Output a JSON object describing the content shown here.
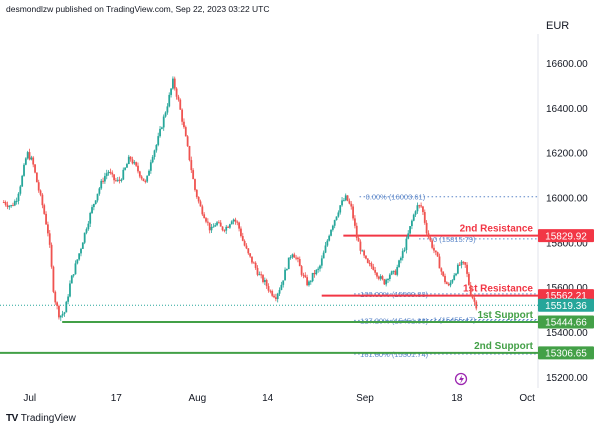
{
  "header": {
    "text": "desmondlzw published on TradingView.com, Sep 22, 2023 03:22 UTC"
  },
  "currency": "EUR",
  "brand": {
    "logo": "TV",
    "name": "TradingView"
  },
  "colors": {
    "up": "#26a69a",
    "down": "#ef5350",
    "resistance": "#f23645",
    "support": "#43a047",
    "fib": "#5b86c8",
    "price_tag": "#26a69a"
  },
  "chart_data": {
    "type": "candlestick",
    "instrument_currency": "EUR",
    "y_ticks": [
      15200,
      15400,
      15600,
      15800,
      16000,
      16200,
      16400,
      16600
    ],
    "y_tick_labels": [
      "15200.00",
      "15400.00",
      "15600.00",
      "15800.00",
      "16000.00",
      "16200.00",
      "16400.00",
      "16600.00"
    ],
    "x_ticks": [
      {
        "label": "Jul",
        "day": 0
      },
      {
        "label": "17",
        "day": 16
      },
      {
        "label": "Aug",
        "day": 31
      },
      {
        "label": "14",
        "day": 44
      },
      {
        "label": "Sep",
        "day": 62
      },
      {
        "label": "18",
        "day": 79
      },
      {
        "label": "Oct",
        "day": 92
      }
    ],
    "ylim": [
      15150,
      16730
    ],
    "xlim": [
      -5.5,
      94
    ],
    "price_path": [
      [
        -4.8,
        15980
      ],
      [
        -3.5,
        15960
      ],
      [
        -2.5,
        15990
      ],
      [
        -1.5,
        16080
      ],
      [
        -0.5,
        16200
      ],
      [
        0.5,
        16160
      ],
      [
        1.5,
        16050
      ],
      [
        2.5,
        15950
      ],
      [
        3.5,
        15830
      ],
      [
        4.5,
        15560
      ],
      [
        5.5,
        15470
      ],
      [
        6.5,
        15490
      ],
      [
        7.5,
        15620
      ],
      [
        8.5,
        15700
      ],
      [
        9.5,
        15780
      ],
      [
        10.5,
        15870
      ],
      [
        11.5,
        15950
      ],
      [
        12.5,
        16020
      ],
      [
        13.5,
        16080
      ],
      [
        14.5,
        16120
      ],
      [
        15.5,
        16080
      ],
      [
        16.5,
        16070
      ],
      [
        17.5,
        16120
      ],
      [
        18.5,
        16180
      ],
      [
        19.5,
        16140
      ],
      [
        20.5,
        16100
      ],
      [
        21.5,
        16060
      ],
      [
        22.5,
        16180
      ],
      [
        23.5,
        16240
      ],
      [
        24.5,
        16330
      ],
      [
        25.5,
        16420
      ],
      [
        26.5,
        16520
      ],
      [
        27.5,
        16430
      ],
      [
        28.5,
        16310
      ],
      [
        29.5,
        16180
      ],
      [
        30.5,
        16040
      ],
      [
        31.5,
        15960
      ],
      [
        32.5,
        15910
      ],
      [
        33.5,
        15850
      ],
      [
        34.5,
        15890
      ],
      [
        35.5,
        15860
      ],
      [
        36.5,
        15870
      ],
      [
        37.5,
        15910
      ],
      [
        38.5,
        15880
      ],
      [
        39.5,
        15800
      ],
      [
        40.5,
        15740
      ],
      [
        41.5,
        15700
      ],
      [
        42.5,
        15650
      ],
      [
        43.5,
        15620
      ],
      [
        44.5,
        15580
      ],
      [
        45.5,
        15560
      ],
      [
        46.5,
        15610
      ],
      [
        47.5,
        15690
      ],
      [
        48.5,
        15760
      ],
      [
        49.5,
        15720
      ],
      [
        50.5,
        15650
      ],
      [
        51.5,
        15610
      ],
      [
        52.5,
        15660
      ],
      [
        53.5,
        15680
      ],
      [
        54.5,
        15760
      ],
      [
        55.5,
        15850
      ],
      [
        56.5,
        15910
      ],
      [
        57.5,
        15970
      ],
      [
        58.5,
        16000
      ],
      [
        59.5,
        15950
      ],
      [
        60.5,
        15820
      ],
      [
        61.5,
        15750
      ],
      [
        62.5,
        15700
      ],
      [
        63.5,
        15690
      ],
      [
        64.5,
        15650
      ],
      [
        65.5,
        15620
      ],
      [
        66.5,
        15660
      ],
      [
        67.5,
        15660
      ],
      [
        68.5,
        15720
      ],
      [
        69.5,
        15790
      ],
      [
        70.5,
        15880
      ],
      [
        71.5,
        15960
      ],
      [
        72.5,
        15960
      ],
      [
        73.5,
        15840
      ],
      [
        74.5,
        15780
      ],
      [
        75.5,
        15720
      ],
      [
        76.5,
        15640
      ],
      [
        77.5,
        15600
      ],
      [
        78.5,
        15660
      ],
      [
        79.5,
        15700
      ],
      [
        80.5,
        15700
      ],
      [
        81.5,
        15580
      ],
      [
        82.5,
        15519
      ]
    ],
    "horizontal_levels": [
      {
        "name": "2nd Resistance",
        "price": 15829.92,
        "label": "15829.92",
        "kind": "resistance",
        "from_day": 58
      },
      {
        "name": "1st Resistance",
        "price": 15562.21,
        "label": "15562.21",
        "kind": "resistance",
        "from_day": 54
      },
      {
        "name": "1st Support",
        "price": 15444.66,
        "label": "15444.66",
        "kind": "support",
        "from_day": 6
      },
      {
        "name": "2nd Support",
        "price": 15306.65,
        "label": "15306.65",
        "kind": "support",
        "from_day": -5.5
      }
    ],
    "last_price": {
      "price": 15519.36,
      "label": "15519.36"
    },
    "fibonacci": [
      {
        "price": 16003.61,
        "label": "0.00% (16003.61)",
        "from_day": 61
      },
      {
        "price": 15815.79,
        "label": "0 (15815.79)",
        "from_day": 72
      },
      {
        "price": 15569.83,
        "label": "100.00% (15569.83)",
        "from_day": 60
      },
      {
        "price": 15455.47,
        "label": "1 (15455.47)",
        "from_day": 72
      },
      {
        "price": 15451.83,
        "label": "127.20% (15451.83)",
        "from_day": 60
      },
      {
        "price": 15301.74,
        "label": "161.80% (15301.74)",
        "from_day": 60
      }
    ],
    "grid": false
  }
}
